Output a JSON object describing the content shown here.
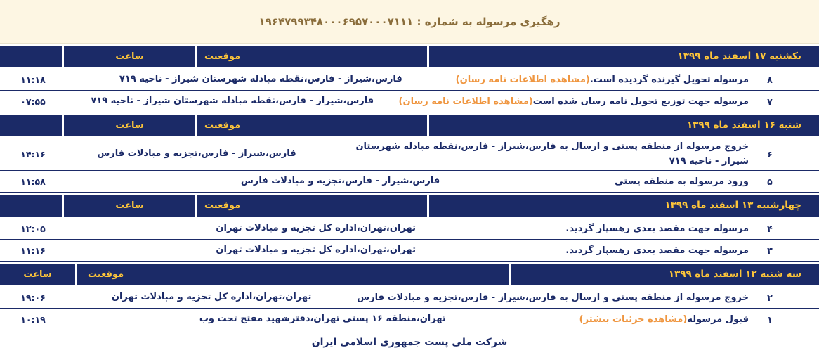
{
  "title": "رهگیری مرسوله به شماره : ۱۹۶۴۷۹۹۳۴۸۰۰۰۶۹۵۷۰۰۰۷۱۱۱",
  "columns": {
    "time": "ساعت",
    "location": "موقعیت"
  },
  "sections": [
    {
      "date": "یکشنبه ۱۷ اسفند ماه ۱۳۹۹",
      "rows": [
        {
          "num": "۸",
          "status": "مرسوله تحویل گیرنده گردیده است.",
          "link": "(مشاهده اطلاعات نامه رسان)",
          "location": "فارس،شیراز - فارس،نقطه مبادله شهرستان شیراز - ناحیه ۷۱۹",
          "time": "۱۱:۱۸"
        },
        {
          "num": "۷",
          "status": "مرسوله جهت توزیع تحویل نامه رسان شده است",
          "link": "(مشاهده اطلاعات نامه رسان)",
          "location": "فارس،شیراز - فارس،نقطه مبادله شهرستان شیراز - ناحیه ۷۱۹",
          "time": "۰۷:۵۵"
        }
      ]
    },
    {
      "date": "شنبه ۱۶ اسفند ماه ۱۳۹۹",
      "rows": [
        {
          "num": "۶",
          "status": "خروج مرسوله از منطقه پستی و ارسال به فارس،شیراز - فارس،نقطه مبادله شهرستان شیراز - ناحیه ۷۱۹",
          "location": "فارس،شیراز - فارس،تجزیه و مبادلات فارس",
          "time": "۱۴:۱۶"
        },
        {
          "num": "۵",
          "status": "ورود مرسوله به منطقه پستی",
          "location": "فارس،شیراز - فارس،تجزیه و مبادلات فارس",
          "time": "۱۱:۵۸"
        }
      ]
    },
    {
      "date": "چهارشنبه ۱۳ اسفند ماه ۱۳۹۹",
      "rows": [
        {
          "num": "۴",
          "status": "مرسوله جهت مقصد بعدی رهسپار گردید.",
          "location": "تهران،تهران،اداره کل تجزیه و مبادلات تهران",
          "time": "۱۲:۰۵"
        },
        {
          "num": "۳",
          "status": "مرسوله جهت مقصد بعدی رهسپار گردید.",
          "location": "تهران،تهران،اداره کل تجزیه و مبادلات تهران",
          "time": "۱۱:۱۶"
        }
      ]
    },
    {
      "date": "سه شنبه ۱۲ اسفند ماه ۱۳۹۹",
      "rows": [
        {
          "num": "۲",
          "status": "خروج مرسوله از منطقه پستی و ارسال به فارس،شیراز - فارس،تجزیه و مبادلات فارس",
          "location": "تهران،تهران،اداره کل تجزیه و مبادلات تهران",
          "time": "۱۹:۰۶"
        },
        {
          "num": "۱",
          "status": "قبول مرسوله",
          "link": "(مشاهده جزئیات بیشتر)",
          "location": "تهران،منطقه ۱۶ پستي تهران،دفترشهید مفتح تحت وب",
          "time": "۱۰:۱۹"
        }
      ]
    }
  ],
  "footer": "شرکت ملی پست جمهوری اسلامی ایران",
  "colors": {
    "navy": "#1b2a67",
    "gold": "#fdc53a",
    "orange": "#ef9640",
    "cream": "#fdf6e3",
    "title_brown": "#8a6d3b"
  }
}
